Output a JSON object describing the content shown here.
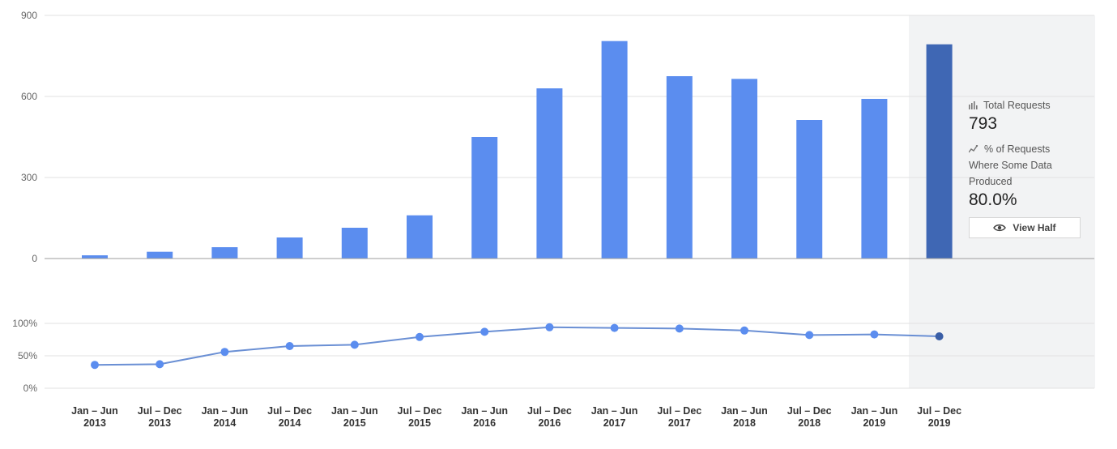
{
  "chart_data": {
    "type": "bar",
    "categories": [
      [
        "Jan – Jun",
        "2013"
      ],
      [
        "Jul – Dec",
        "2013"
      ],
      [
        "Jan – Jun",
        "2014"
      ],
      [
        "Jul – Dec",
        "2014"
      ],
      [
        "Jan – Jun",
        "2015"
      ],
      [
        "Jul – Dec",
        "2015"
      ],
      [
        "Jan – Jun",
        "2016"
      ],
      [
        "Jul – Dec",
        "2016"
      ],
      [
        "Jan – Jun",
        "2017"
      ],
      [
        "Jul – Dec",
        "2017"
      ],
      [
        "Jan – Jun",
        "2018"
      ],
      [
        "Jul – Dec",
        "2018"
      ],
      [
        "Jan – Jun",
        "2019"
      ],
      [
        "Jul – Dec",
        "2019"
      ]
    ],
    "series": [
      {
        "name": "Total Requests",
        "type": "bar",
        "values": [
          12,
          25,
          42,
          78,
          114,
          160,
          450,
          630,
          805,
          675,
          665,
          513,
          591,
          793
        ],
        "ylim": [
          0,
          900
        ],
        "yticks": [
          0,
          300,
          600,
          900
        ]
      },
      {
        "name": "% of Requests Where Some Data Produced",
        "type": "line",
        "values": [
          36,
          37,
          56,
          65,
          67,
          79,
          87,
          94,
          93,
          92,
          89,
          82,
          83,
          80.0
        ],
        "ylim": [
          0,
          100
        ],
        "yticks": [
          "0%",
          "50%",
          "100%"
        ]
      }
    ],
    "highlighted_index": 13,
    "grid": true,
    "colors": {
      "bar": "#5b8def",
      "bar_highlight": "#3f67b4",
      "line": "#6a8fd4",
      "point": "#5b8def",
      "point_highlight": "#3a5ea6",
      "highlight_bg": "#f2f3f4"
    }
  },
  "tooltip": {
    "total_label": "Total Requests",
    "total_value": "793",
    "pct_label_line1": "% of Requests",
    "pct_label_line2": "Where Some Data Produced",
    "pct_value": "80.0%",
    "button_label": "View Half",
    "total_icon": "bar-chart-icon",
    "pct_icon": "line-chart-icon",
    "button_icon": "eye-icon"
  }
}
